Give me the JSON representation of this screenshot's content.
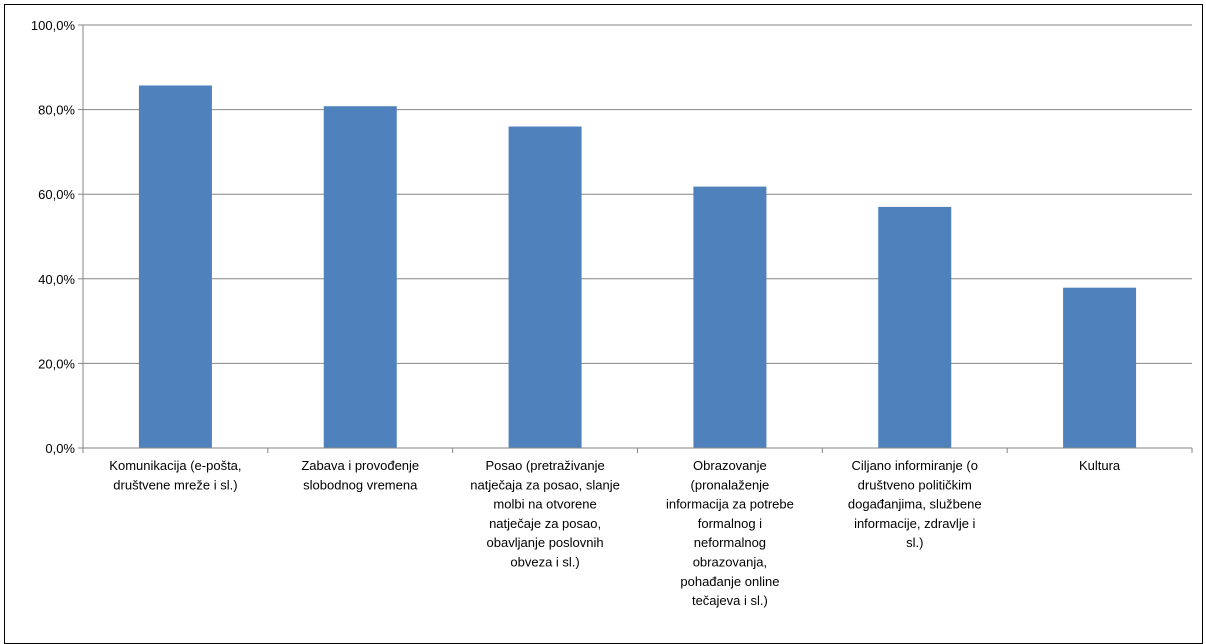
{
  "chart_data": {
    "type": "bar",
    "title": "",
    "xlabel": "",
    "ylabel": "",
    "ylim": [
      0,
      100
    ],
    "yticks": [
      "0,0%",
      "20,0%",
      "40,0%",
      "60,0%",
      "80,0%",
      "100,0%"
    ],
    "yticks_values": [
      0,
      20,
      40,
      60,
      80,
      100
    ],
    "grid": true,
    "bar_color": "#4f81bd",
    "categories": [
      [
        "Komunikacija (e-pošta,",
        "društvene mreže i sl.)"
      ],
      [
        "Zabava i provođenje",
        "slobodnog vremena"
      ],
      [
        "Posao (pretraživanje",
        "natječaja za posao, slanje",
        "molbi na otvorene",
        "natječaje za posao,",
        "obavljanje poslovnih",
        "obveza i sl.)"
      ],
      [
        "Obrazovanje",
        "(pronalaženje",
        "informacija za potrebe",
        "formalnog i",
        "neformalnog",
        "obrazovanja,",
        "pohađanje online",
        "tečajeva i sl.)"
      ],
      [
        "Ciljano informiranje (o",
        "društveno političkim",
        "događanjima, službene",
        "informacije, zdravlje i",
        "sl.)"
      ],
      [
        "Kultura"
      ]
    ],
    "values": [
      85.7,
      80.8,
      76.0,
      61.8,
      57.0,
      37.9
    ]
  }
}
